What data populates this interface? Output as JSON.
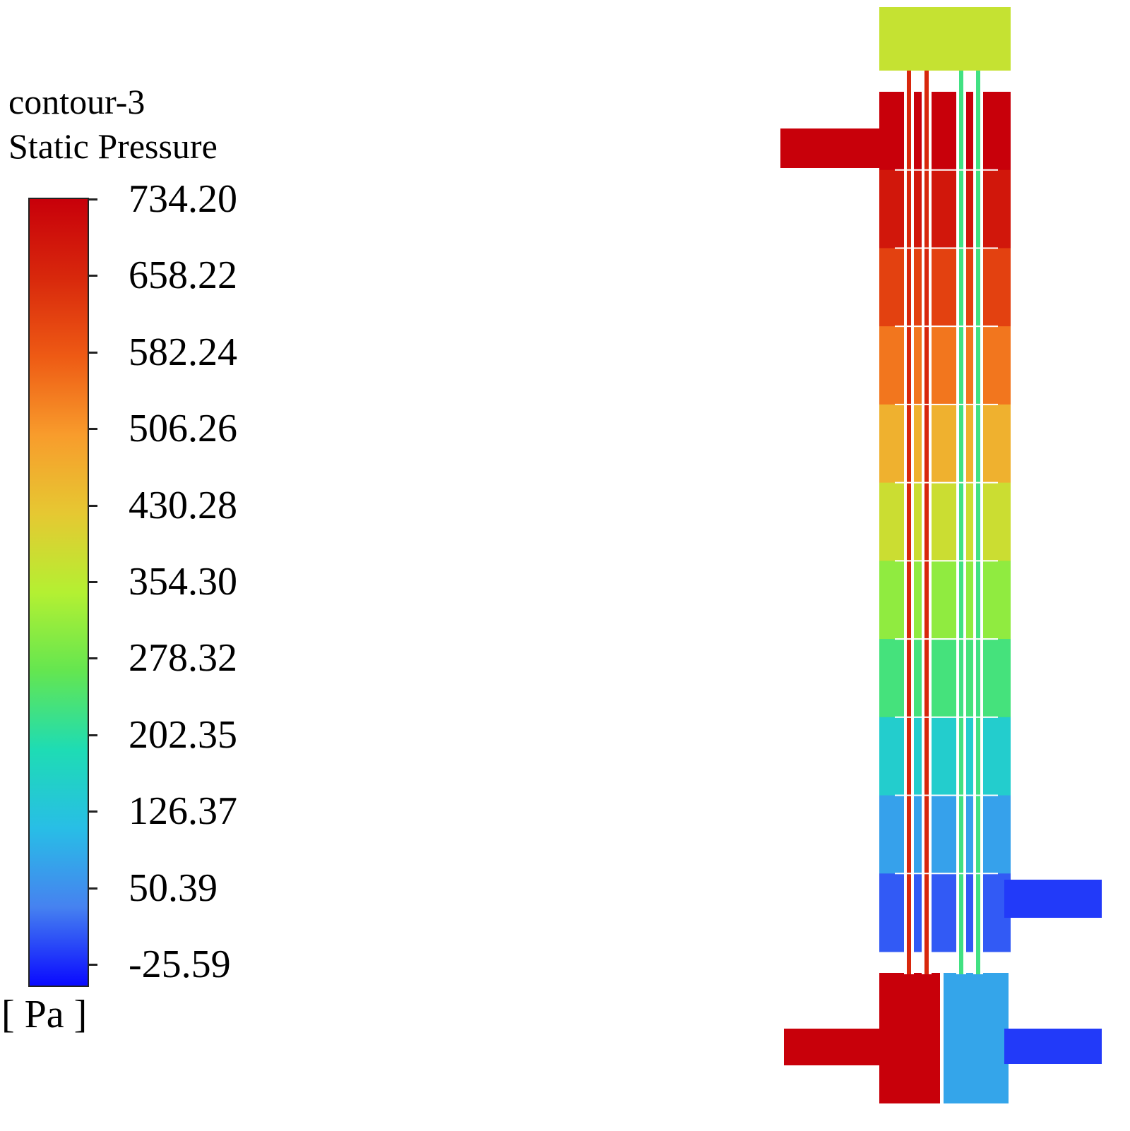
{
  "legend": {
    "title_line1": "contour-3",
    "title_line2": "Static Pressure",
    "unit": "[ Pa ]",
    "ticks": [
      "734.20",
      "658.22",
      "582.24",
      "506.26",
      "430.28",
      "354.30",
      "278.32",
      "202.35",
      "126.37",
      "50.39",
      "-25.59"
    ],
    "max": 734.2,
    "min": -25.59
  },
  "colormap": [
    "#0a0aff",
    "#4682f0",
    "#28bee6",
    "#1edcb4",
    "#64e650",
    "#b4f032",
    "#e6c832",
    "#f89c2c",
    "#ee5a14",
    "#d8280c",
    "#c8000a"
  ],
  "field": {
    "top_header_pa": 380,
    "inlet_pa": 734,
    "bands_pa_top_to_bottom": [
      734,
      690,
      620,
      550,
      470,
      390,
      320,
      245,
      165,
      90,
      25
    ],
    "outlet_right_pa": 5,
    "bottom_left_header_pa": 734,
    "bottom_right_header_pa": 95,
    "bottom_right_outlet_pa": 5,
    "tube_left_pa": 660,
    "tube_right_pa": 240
  }
}
